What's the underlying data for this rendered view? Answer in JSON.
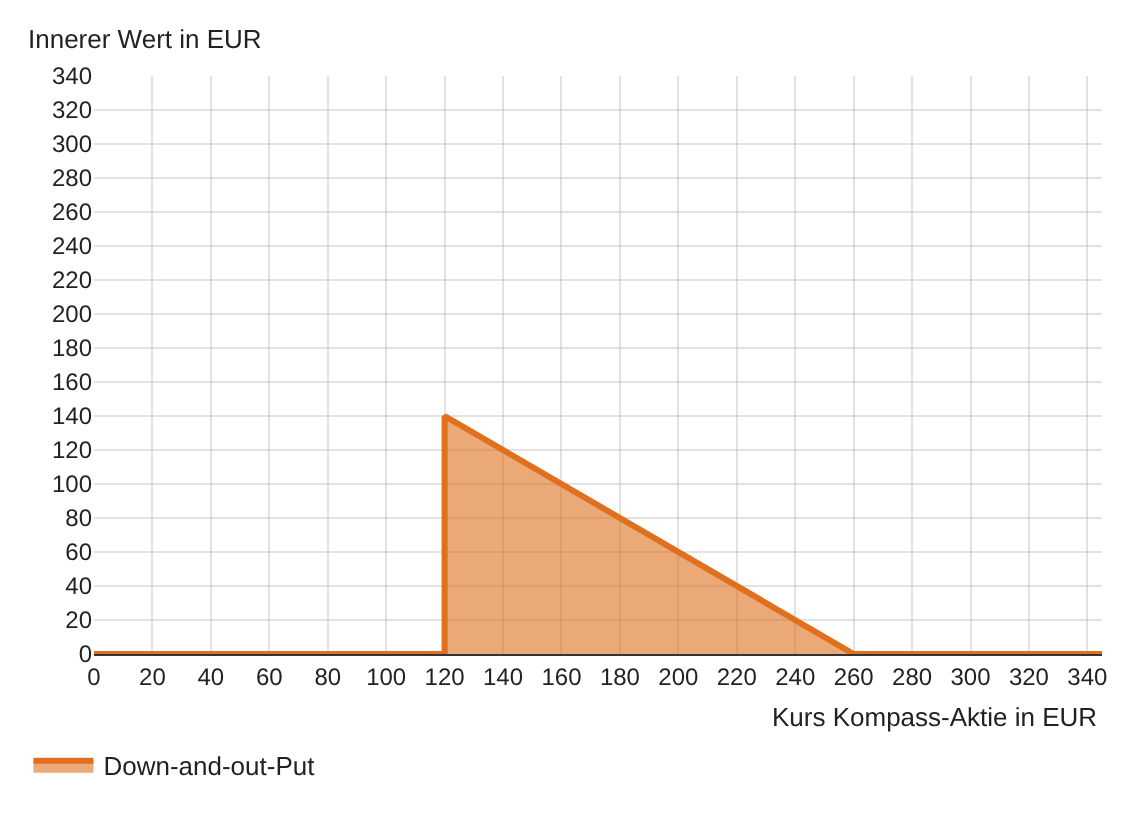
{
  "chart_data": {
    "type": "area",
    "xlabel": "Kurs Kompass-Aktie in EUR",
    "ylabel": "Innerer Wert in EUR",
    "x": [
      0,
      120,
      120,
      260,
      345
    ],
    "series": [
      {
        "name": "Down-and-out-Put",
        "color": "#e0701e",
        "values": [
          0,
          0,
          140,
          0,
          0
        ]
      }
    ],
    "xlim": [
      0,
      345
    ],
    "ylim": [
      0,
      340
    ],
    "xticks": [
      0,
      20,
      40,
      60,
      80,
      100,
      120,
      140,
      160,
      180,
      200,
      220,
      240,
      260,
      280,
      300,
      320,
      340
    ],
    "yticks": [
      0,
      20,
      40,
      60,
      80,
      100,
      120,
      140,
      160,
      180,
      200,
      220,
      240,
      260,
      280,
      300,
      320,
      340
    ],
    "grid": true,
    "legend": "bottom left"
  }
}
